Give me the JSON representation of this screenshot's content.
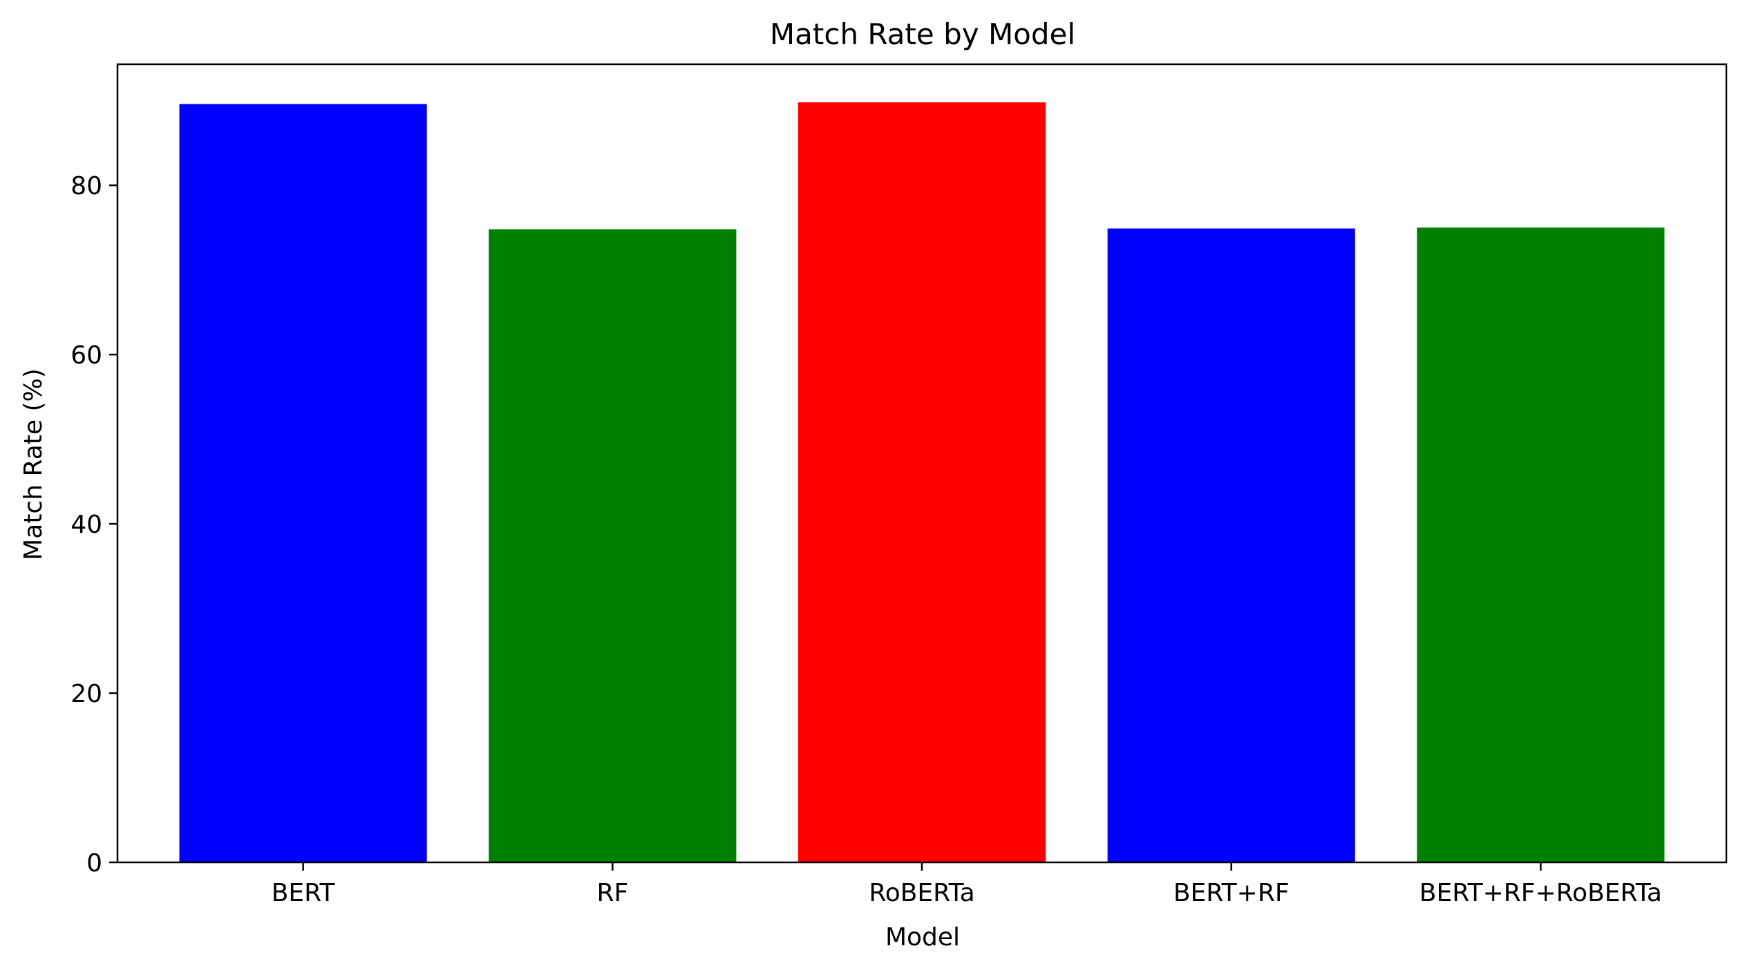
{
  "chart_data": {
    "type": "bar",
    "title": "Match Rate by Model",
    "xlabel": "Model",
    "ylabel": "Match Rate (%)",
    "categories": [
      "BERT",
      "RF",
      "RoBERTa",
      "BERT+RF",
      "BERT+RF+RoBERTa"
    ],
    "values": [
      89.6,
      74.8,
      89.8,
      74.9,
      75.0
    ],
    "colors": [
      "#0000ff",
      "#008000",
      "#ff0000",
      "#0000ff",
      "#008000"
    ],
    "ylim": [
      0,
      94.3
    ],
    "yticks": [
      0,
      20,
      40,
      60,
      80
    ],
    "grid": false,
    "legend": "none"
  }
}
